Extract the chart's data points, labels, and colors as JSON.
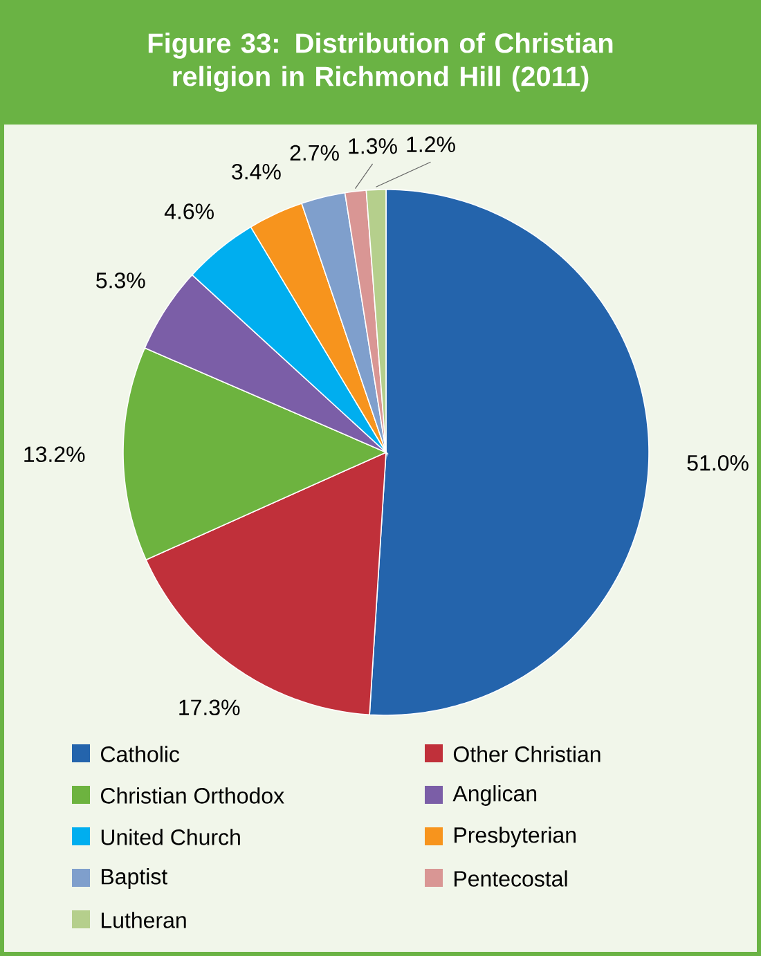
{
  "chart_data": {
    "type": "pie",
    "title": "Figure 33: Distribution of Christian religion in Richmond Hill (2011)",
    "categories": [
      "Catholic",
      "Other Christian",
      "Christian Orthodox",
      "Anglican",
      "United Church",
      "Presbyterian",
      "Baptist",
      "Pentecostal",
      "Lutheran"
    ],
    "values": [
      51.0,
      17.3,
      13.2,
      5.3,
      4.6,
      3.4,
      2.7,
      1.3,
      1.2
    ],
    "value_labels": [
      "51.0%",
      "17.3%",
      "13.2%",
      "5.3%",
      "4.6%",
      "3.4%",
      "2.7%",
      "1.3%",
      "1.2%"
    ],
    "colors": [
      "#2464ac",
      "#c0303a",
      "#6db33f",
      "#7b5ea7",
      "#00aeef",
      "#f7941d",
      "#7f9fcc",
      "#d99694",
      "#b5cf8c"
    ],
    "legend": "bottom"
  }
}
